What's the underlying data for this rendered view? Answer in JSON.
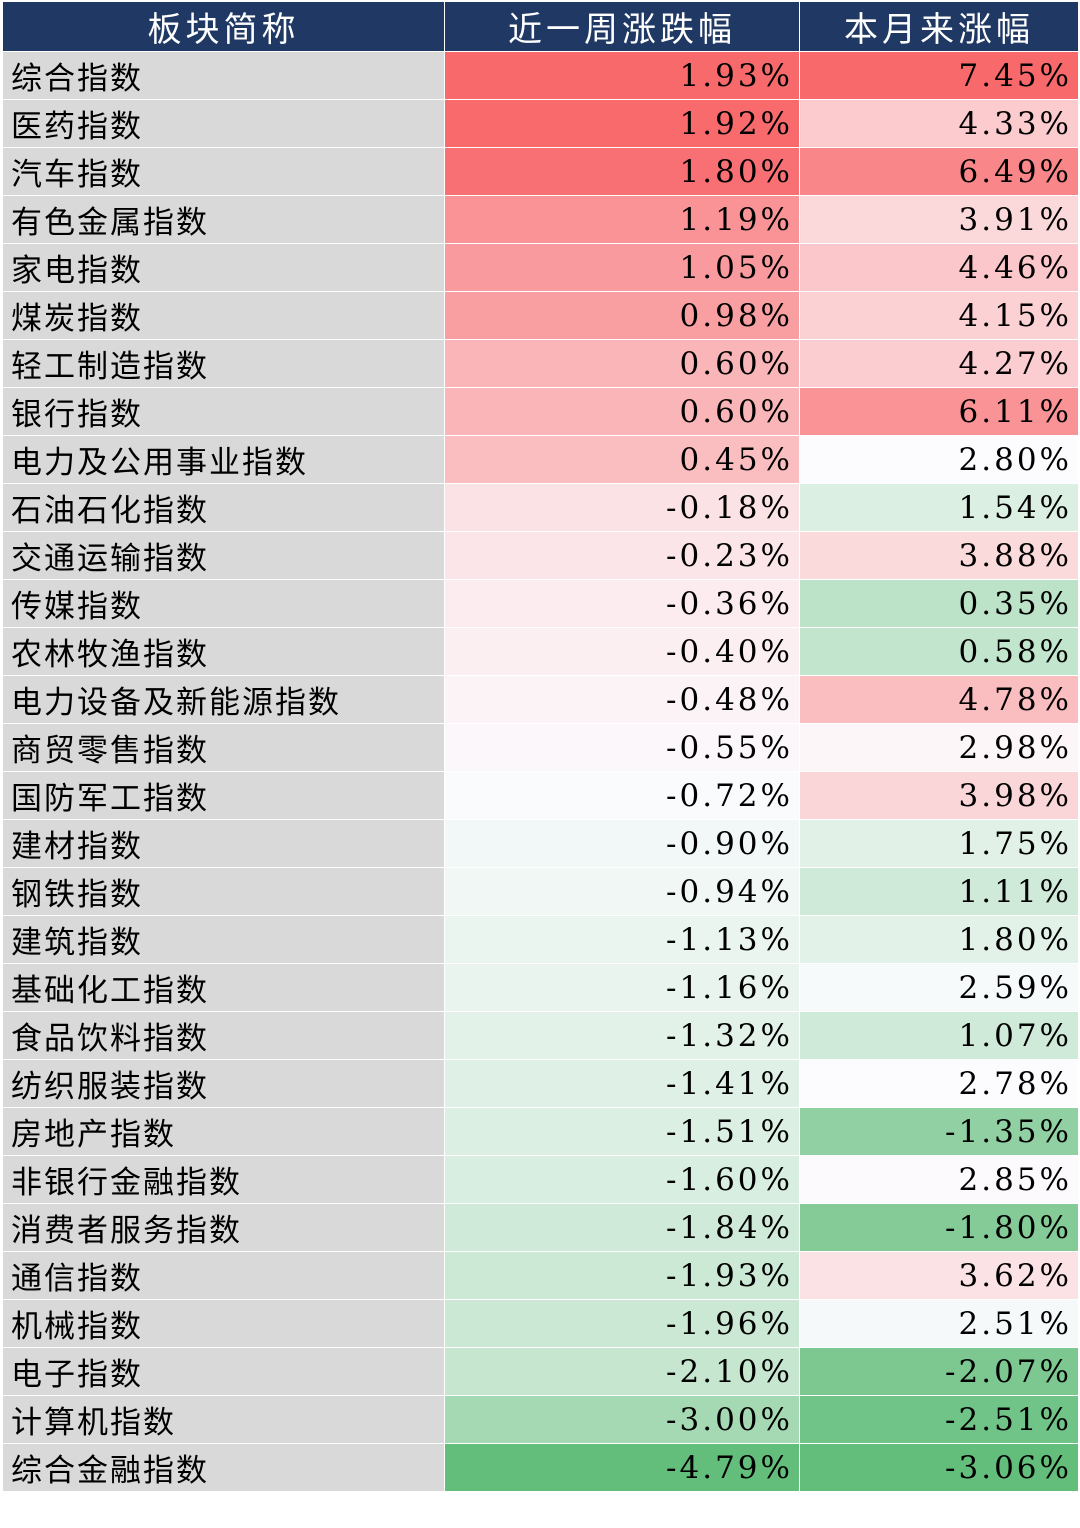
{
  "chart_data": {
    "type": "table",
    "columns": [
      "板块简称",
      "近一周涨跌幅",
      "本月来涨幅"
    ],
    "rows": [
      {
        "name": "综合指数",
        "week": "1.93%",
        "month": "7.45%",
        "week_value": 1.93,
        "month_value": 7.45
      },
      {
        "name": "医药指数",
        "week": "1.92%",
        "month": "4.33%",
        "week_value": 1.92,
        "month_value": 4.33
      },
      {
        "name": "汽车指数",
        "week": "1.80%",
        "month": "6.49%",
        "week_value": 1.8,
        "month_value": 6.49
      },
      {
        "name": "有色金属指数",
        "week": "1.19%",
        "month": "3.91%",
        "week_value": 1.19,
        "month_value": 3.91
      },
      {
        "name": "家电指数",
        "week": "1.05%",
        "month": "4.46%",
        "week_value": 1.05,
        "month_value": 4.46
      },
      {
        "name": "煤炭指数",
        "week": "0.98%",
        "month": "4.15%",
        "week_value": 0.98,
        "month_value": 4.15
      },
      {
        "name": "轻工制造指数",
        "week": "0.60%",
        "month": "4.27%",
        "week_value": 0.6,
        "month_value": 4.27
      },
      {
        "name": "银行指数",
        "week": "0.60%",
        "month": "6.11%",
        "week_value": 0.6,
        "month_value": 6.11
      },
      {
        "name": "电力及公用事业指数",
        "week": "0.45%",
        "month": "2.80%",
        "week_value": 0.45,
        "month_value": 2.8
      },
      {
        "name": "石油石化指数",
        "week": "-0.18%",
        "month": "1.54%",
        "week_value": -0.18,
        "month_value": 1.54
      },
      {
        "name": "交通运输指数",
        "week": "-0.23%",
        "month": "3.88%",
        "week_value": -0.23,
        "month_value": 3.88
      },
      {
        "name": "传媒指数",
        "week": "-0.36%",
        "month": "0.35%",
        "week_value": -0.36,
        "month_value": 0.35
      },
      {
        "name": "农林牧渔指数",
        "week": "-0.40%",
        "month": "0.58%",
        "week_value": -0.4,
        "month_value": 0.58
      },
      {
        "name": "电力设备及新能源指数",
        "week": "-0.48%",
        "month": "4.78%",
        "week_value": -0.48,
        "month_value": 4.78
      },
      {
        "name": "商贸零售指数",
        "week": "-0.55%",
        "month": "2.98%",
        "week_value": -0.55,
        "month_value": 2.98
      },
      {
        "name": "国防军工指数",
        "week": "-0.72%",
        "month": "3.98%",
        "week_value": -0.72,
        "month_value": 3.98
      },
      {
        "name": "建材指数",
        "week": "-0.90%",
        "month": "1.75%",
        "week_value": -0.9,
        "month_value": 1.75
      },
      {
        "name": "钢铁指数",
        "week": "-0.94%",
        "month": "1.11%",
        "week_value": -0.94,
        "month_value": 1.11
      },
      {
        "name": "建筑指数",
        "week": "-1.13%",
        "month": "1.80%",
        "week_value": -1.13,
        "month_value": 1.8
      },
      {
        "name": "基础化工指数",
        "week": "-1.16%",
        "month": "2.59%",
        "week_value": -1.16,
        "month_value": 2.59
      },
      {
        "name": "食品饮料指数",
        "week": "-1.32%",
        "month": "1.07%",
        "week_value": -1.32,
        "month_value": 1.07
      },
      {
        "name": "纺织服装指数",
        "week": "-1.41%",
        "month": "2.78%",
        "week_value": -1.41,
        "month_value": 2.78
      },
      {
        "name": "房地产指数",
        "week": "-1.51%",
        "month": "-1.35%",
        "week_value": -1.51,
        "month_value": -1.35
      },
      {
        "name": "非银行金融指数",
        "week": "-1.60%",
        "month": "2.85%",
        "week_value": -1.6,
        "month_value": 2.85
      },
      {
        "name": "消费者服务指数",
        "week": "-1.84%",
        "month": "-1.80%",
        "week_value": -1.84,
        "month_value": -1.8
      },
      {
        "name": "通信指数",
        "week": "-1.93%",
        "month": "3.62%",
        "week_value": -1.93,
        "month_value": 3.62
      },
      {
        "name": "机械指数",
        "week": "-1.96%",
        "month": "2.51%",
        "week_value": -1.96,
        "month_value": 2.51
      },
      {
        "name": "电子指数",
        "week": "-2.10%",
        "month": "-2.07%",
        "week_value": -2.1,
        "month_value": -2.07
      },
      {
        "name": "计算机指数",
        "week": "-3.00%",
        "month": "-2.51%",
        "week_value": -3.0,
        "month_value": -2.51
      },
      {
        "name": "综合金融指数",
        "week": "-4.79%",
        "month": "-3.06%",
        "week_value": -4.79,
        "month_value": -3.06
      }
    ]
  },
  "colors": {
    "header_bg": "#1f3864",
    "header_text": "#ffffff",
    "name_cell_bg": "#d9d9d9",
    "max_red": "#f8696b",
    "mid_white": "#fcfcff",
    "min_green": "#63be7b"
  }
}
